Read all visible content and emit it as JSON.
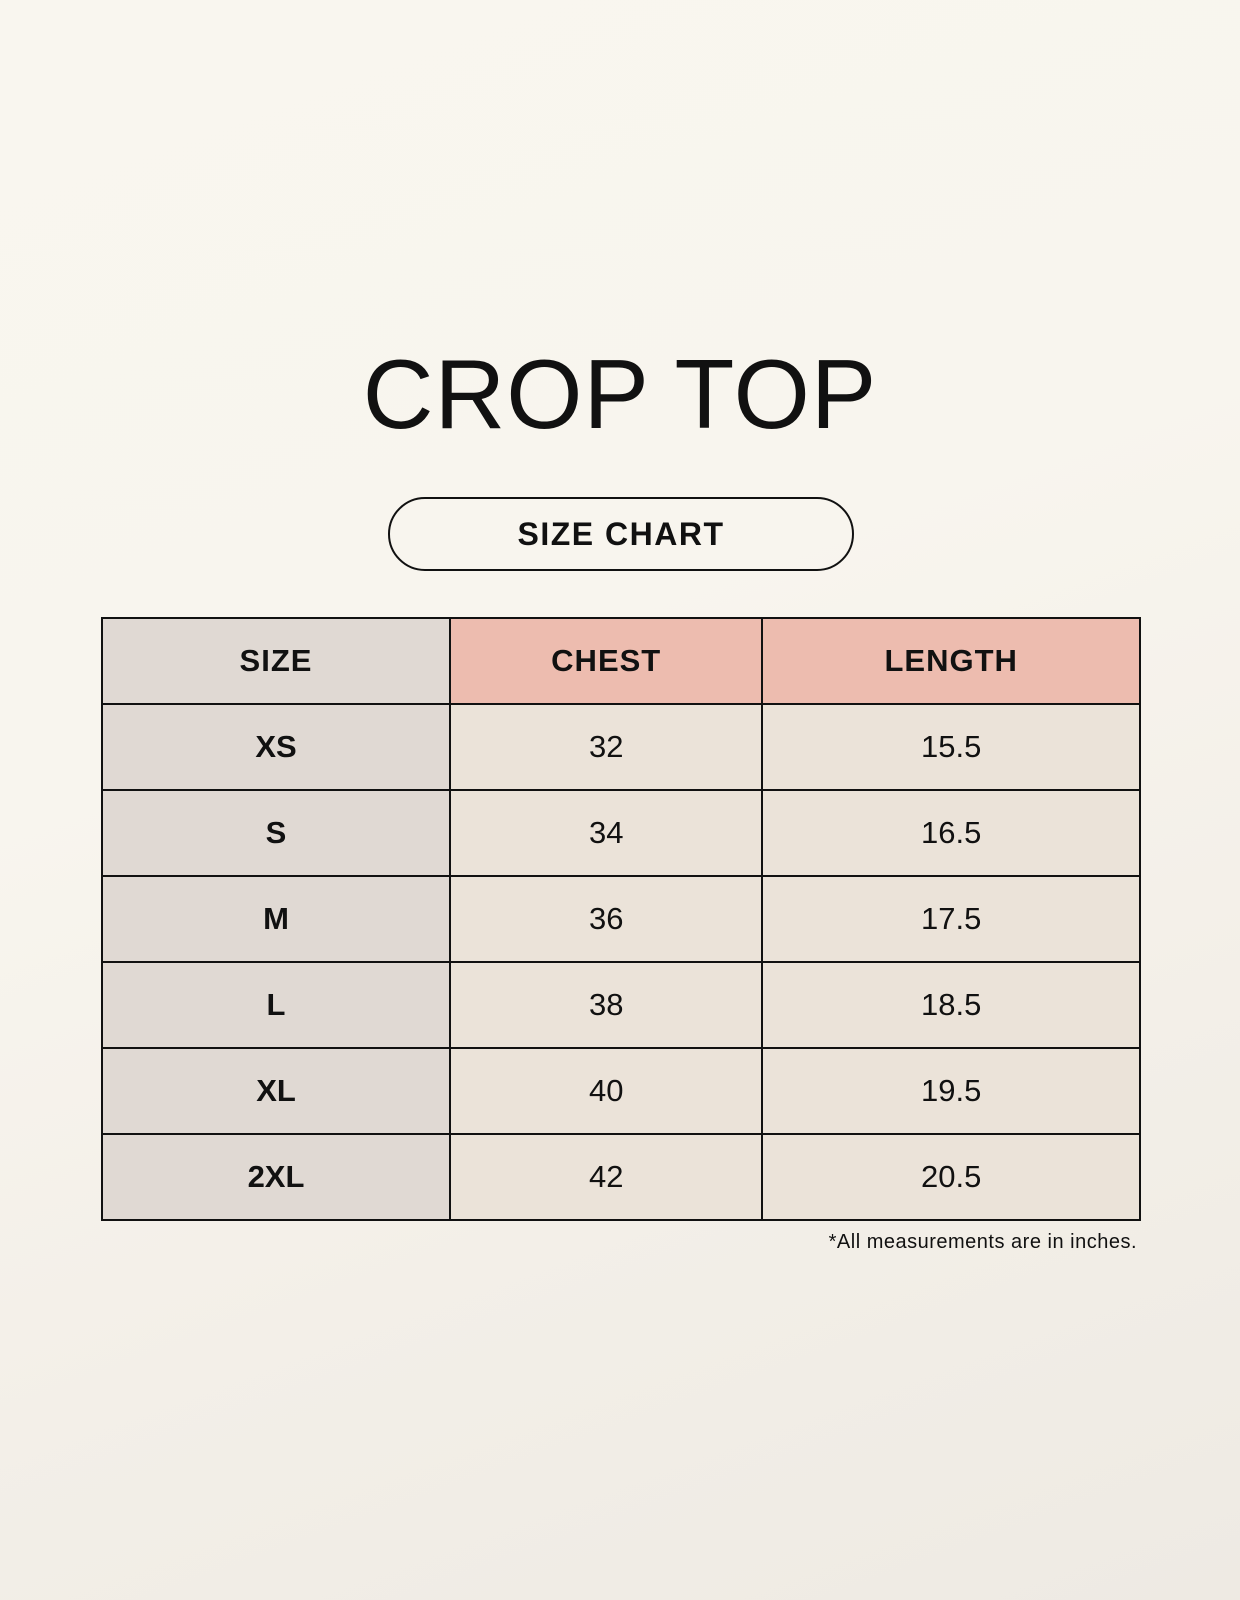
{
  "title": "CROP TOP",
  "subtitle": "SIZE CHART",
  "colors": {
    "size_column": "#e0d9d3",
    "header_accent": "#edbcaf",
    "value_cells": "#ebe3d9"
  },
  "table": {
    "headers": [
      "SIZE",
      "CHEST",
      "LENGTH"
    ],
    "rows": [
      [
        "XS",
        "32",
        "15.5"
      ],
      [
        "S",
        "34",
        "16.5"
      ],
      [
        "M",
        "36",
        "17.5"
      ],
      [
        "L",
        "38",
        "18.5"
      ],
      [
        "XL",
        "40",
        "19.5"
      ],
      [
        "2XL",
        "42",
        "20.5"
      ]
    ]
  },
  "footnote": "*All measurements are in inches."
}
